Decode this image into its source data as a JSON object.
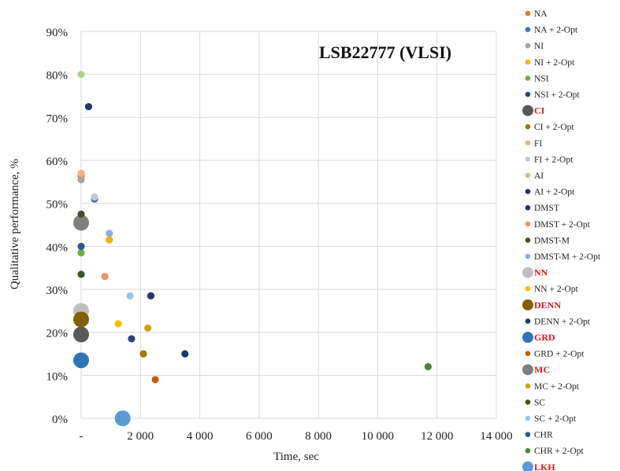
{
  "chart_data": {
    "type": "scatter",
    "title": "LSB22777 (VLSI)",
    "xlabel": "Time, sec",
    "ylabel": "Qualitative performance, %",
    "xlim": [
      0,
      14000
    ],
    "ylim": [
      0,
      90
    ],
    "x_ticks": [
      0,
      2000,
      4000,
      6000,
      8000,
      10000,
      12000,
      14000
    ],
    "x_tick_labels": [
      "-",
      "2 000",
      "4 000",
      "6 000",
      "8 000",
      "10 000",
      "12 000",
      "14 000"
    ],
    "y_ticks": [
      0,
      10,
      20,
      30,
      40,
      50,
      60,
      70,
      80,
      90
    ],
    "y_tick_labels": [
      "0%",
      "10%",
      "20%",
      "30%",
      "40%",
      "50%",
      "60%",
      "70%",
      "80%",
      "90%"
    ],
    "grid": true,
    "legend_position": "right",
    "series": [
      {
        "name": "NA",
        "color": "#e8772e",
        "size": "small",
        "highlight": false,
        "points": [
          [
            0,
            56.5
          ]
        ]
      },
      {
        "name": "NA + 2-Opt",
        "color": "#4472c4",
        "size": "small",
        "highlight": false,
        "points": [
          [
            450,
            51
          ]
        ]
      },
      {
        "name": "NI",
        "color": "#a5a5a5",
        "size": "small",
        "highlight": false,
        "points": [
          [
            0,
            55.5
          ]
        ]
      },
      {
        "name": "NI + 2-Opt",
        "color": "#f0b400",
        "size": "small",
        "highlight": false,
        "points": [
          [
            950,
            41.5
          ]
        ]
      },
      {
        "name": "NSI",
        "color": "#70ad47",
        "size": "small",
        "highlight": false,
        "points": [
          [
            0,
            38.5
          ]
        ]
      },
      {
        "name": "NSI + 2-Opt",
        "color": "#264478",
        "size": "small",
        "highlight": false,
        "points": [
          [
            1700,
            18.5
          ]
        ]
      },
      {
        "name": "CI",
        "color": "#595959",
        "size": "large",
        "highlight": true,
        "points": [
          [
            0,
            19.5
          ]
        ]
      },
      {
        "name": "CI + 2-Opt",
        "color": "#9e7b0f",
        "size": "small",
        "highlight": false,
        "points": [
          [
            2100,
            15
          ]
        ]
      },
      {
        "name": "FI",
        "color": "#f4b183",
        "size": "small",
        "highlight": false,
        "points": [
          [
            0,
            57
          ]
        ]
      },
      {
        "name": "FI + 2-Opt",
        "color": "#c9c9c9",
        "size": "small",
        "highlight": false,
        "points": [
          [
            450,
            51.5
          ]
        ]
      },
      {
        "name": "AI",
        "color": "#a9d18e",
        "size": "small",
        "highlight": false,
        "points": [
          [
            0,
            80
          ]
        ]
      },
      {
        "name": "AI + 2-Opt",
        "color": "#203864",
        "size": "small",
        "highlight": false,
        "points": [
          [
            2350,
            28.5
          ]
        ]
      },
      {
        "name": "DMST",
        "color": "#1f3864",
        "size": "small",
        "highlight": false,
        "points": [
          [
            250,
            72.5
          ]
        ]
      },
      {
        "name": "DMST + 2-Opt",
        "color": "#e8956a",
        "size": "small",
        "highlight": false,
        "points": [
          [
            800,
            33
          ]
        ]
      },
      {
        "name": "DMST-M",
        "color": "#375623",
        "size": "small",
        "highlight": false,
        "points": [
          [
            0,
            33.5
          ]
        ]
      },
      {
        "name": "DMST-M + 2-Opt",
        "color": "#8faadc",
        "size": "small",
        "highlight": false,
        "points": [
          [
            950,
            43
          ]
        ]
      },
      {
        "name": "NN",
        "color": "#bfbfbf",
        "size": "large",
        "highlight": true,
        "points": [
          [
            0,
            25
          ]
        ]
      },
      {
        "name": "NN + 2-Opt",
        "color": "#ffc000",
        "size": "small",
        "highlight": false,
        "points": [
          [
            1250,
            22
          ]
        ]
      },
      {
        "name": "DENN",
        "color": "#806000",
        "size": "large",
        "highlight": true,
        "points": [
          [
            0,
            23
          ]
        ]
      },
      {
        "name": "DENN + 2-Opt",
        "color": "#1f3864",
        "size": "small",
        "highlight": false,
        "points": [
          [
            3500,
            15
          ]
        ]
      },
      {
        "name": "GRD",
        "color": "#2e75b6",
        "size": "large",
        "highlight": true,
        "points": [
          [
            0,
            13.5
          ]
        ]
      },
      {
        "name": "GRD + 2-Opt",
        "color": "#c55a11",
        "size": "small",
        "highlight": false,
        "points": [
          [
            2500,
            9
          ]
        ]
      },
      {
        "name": "MC",
        "color": "#7f7f7f",
        "size": "large",
        "highlight": true,
        "points": [
          [
            0,
            45.5
          ]
        ]
      },
      {
        "name": "MC + 2-Opt",
        "color": "#d4a017",
        "size": "small",
        "highlight": false,
        "points": [
          [
            2250,
            21
          ]
        ]
      },
      {
        "name": "SC",
        "color": "#385723",
        "size": "small",
        "highlight": false,
        "points": [
          [
            0,
            47.5
          ]
        ]
      },
      {
        "name": "SC + 2-Opt",
        "color": "#9dc3e6",
        "size": "small",
        "highlight": false,
        "points": [
          [
            1650,
            28.5
          ]
        ]
      },
      {
        "name": "CHR",
        "color": "#2f5597",
        "size": "small",
        "highlight": false,
        "points": [
          [
            0,
            40
          ]
        ]
      },
      {
        "name": "CHR + 2-Opt",
        "color": "#548235",
        "size": "small",
        "highlight": false,
        "points": [
          [
            11700,
            12
          ]
        ]
      },
      {
        "name": "LKH",
        "color": "#5b9bd5",
        "size": "large",
        "highlight": true,
        "points": [
          [
            1400,
            0
          ]
        ]
      }
    ]
  }
}
